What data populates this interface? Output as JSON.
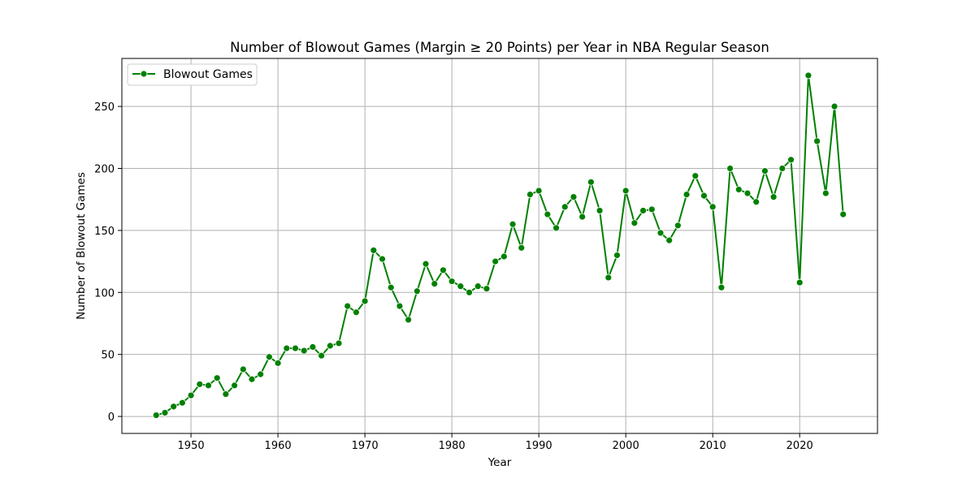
{
  "chart_data": {
    "type": "line",
    "title": "Number of Blowout Games (Margin ≥ 20 Points) per Year in NBA Regular Season",
    "xlabel": "Year",
    "ylabel": "Number of Blowout Games",
    "xlim": [
      1942.05,
      2028.95
    ],
    "ylim": [
      -13.7,
      288.7
    ],
    "xticks": [
      1950,
      1960,
      1970,
      1980,
      1990,
      2000,
      2010,
      2020
    ],
    "yticks": [
      0,
      50,
      100,
      150,
      200,
      250
    ],
    "grid": true,
    "legend_position": "top-left",
    "color": "#008000",
    "series": [
      {
        "name": "Blowout Games",
        "x": [
          1946,
          1947,
          1948,
          1949,
          1950,
          1951,
          1952,
          1953,
          1954,
          1955,
          1956,
          1957,
          1958,
          1959,
          1960,
          1961,
          1962,
          1963,
          1964,
          1965,
          1966,
          1967,
          1968,
          1969,
          1970,
          1971,
          1972,
          1973,
          1974,
          1975,
          1976,
          1977,
          1978,
          1979,
          1980,
          1981,
          1982,
          1983,
          1984,
          1985,
          1986,
          1987,
          1988,
          1989,
          1990,
          1991,
          1992,
          1993,
          1994,
          1995,
          1996,
          1997,
          1998,
          1999,
          2000,
          2001,
          2002,
          2003,
          2004,
          2005,
          2006,
          2007,
          2008,
          2009,
          2010,
          2011,
          2012,
          2013,
          2014,
          2015,
          2016,
          2017,
          2018,
          2019,
          2020,
          2021,
          2022,
          2023,
          2024,
          2025
        ],
        "y": [
          1,
          3,
          8,
          11,
          17,
          26,
          25,
          31,
          18,
          25,
          38,
          30,
          34,
          48,
          43,
          55,
          55,
          53,
          56,
          49,
          57,
          59,
          89,
          84,
          93,
          134,
          127,
          104,
          89,
          78,
          101,
          123,
          107,
          118,
          109,
          105,
          100,
          105,
          103,
          125,
          129,
          155,
          136,
          179,
          182,
          163,
          152,
          169,
          177,
          161,
          189,
          166,
          112,
          130,
          182,
          156,
          166,
          167,
          148,
          142,
          154,
          179,
          194,
          178,
          169,
          104,
          200,
          183,
          180,
          173,
          198,
          177,
          200,
          207,
          108,
          275,
          222,
          180,
          250,
          163
        ]
      }
    ]
  }
}
